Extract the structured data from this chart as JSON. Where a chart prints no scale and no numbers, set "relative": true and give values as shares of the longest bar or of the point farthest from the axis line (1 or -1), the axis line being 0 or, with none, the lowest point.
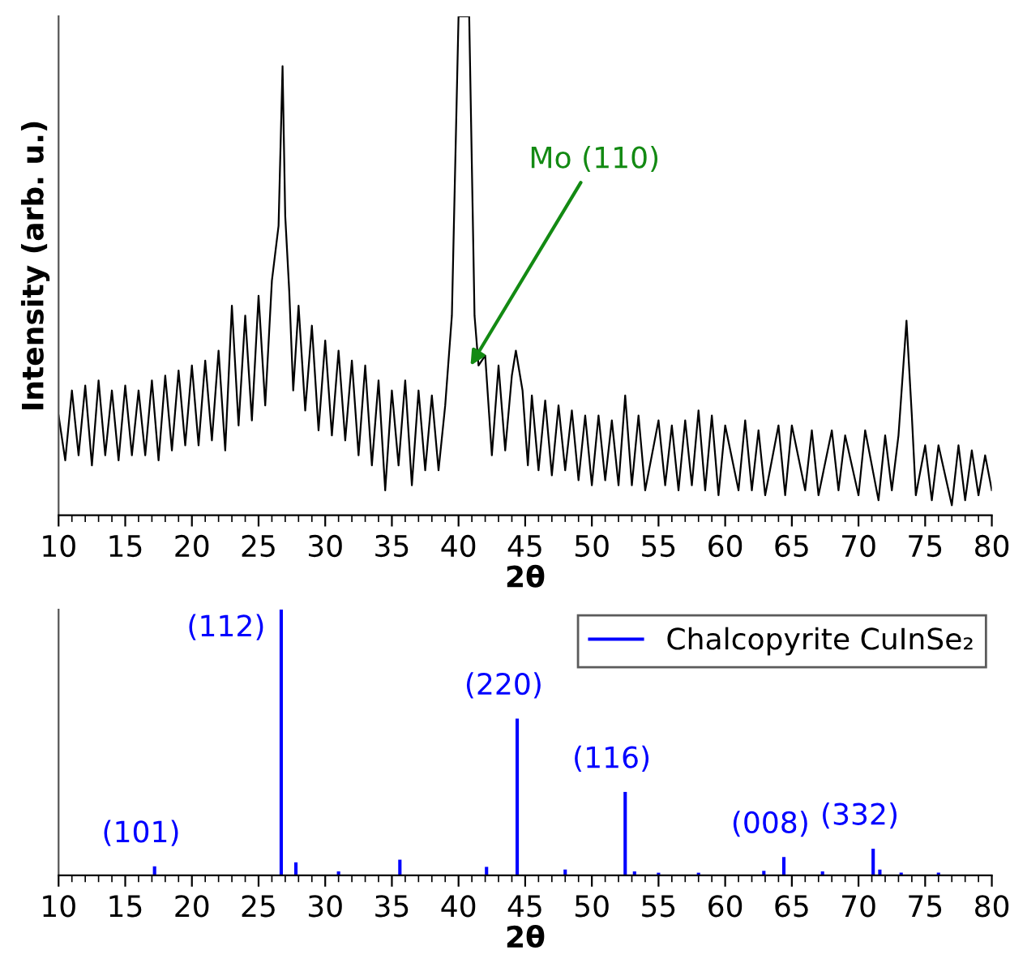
{
  "chart_data": [
    {
      "type": "line",
      "relative": true,
      "xlabel": "2θ",
      "ylabel": "Intensity (arb. u.)",
      "xlim": [
        10,
        80
      ],
      "xticks": [
        10,
        {
          "value": 11,
          "label": null
        },
        {
          "value": 12,
          "label": null
        },
        {
          "value": 13,
          "label": null
        },
        {
          "value": 14,
          "label": null
        },
        15,
        {
          "value": 16,
          "label": null
        },
        {
          "value": 17,
          "label": null
        },
        {
          "value": 18,
          "label": null
        },
        {
          "value": 19,
          "label": null
        },
        20,
        {
          "value": 21,
          "label": null
        },
        {
          "value": 22,
          "label": null
        },
        {
          "value": 23,
          "label": null
        },
        {
          "value": 24,
          "label": null
        },
        25,
        {
          "value": 26,
          "label": null
        },
        {
          "value": 27,
          "label": null
        },
        {
          "value": 28,
          "label": null
        },
        {
          "value": 29,
          "label": null
        },
        30,
        {
          "value": 31,
          "label": null
        },
        {
          "value": 32,
          "label": null
        },
        {
          "value": 33,
          "label": null
        },
        {
          "value": 34,
          "label": null
        },
        35,
        {
          "value": 36,
          "label": null
        },
        {
          "value": 37,
          "label": null
        },
        {
          "value": 38,
          "label": null
        },
        {
          "value": 39,
          "label": null
        },
        40,
        {
          "value": 41,
          "label": null
        },
        {
          "value": 42,
          "label": null
        },
        {
          "value": 43,
          "label": null
        },
        {
          "value": 44,
          "label": null
        },
        45,
        {
          "value": 46,
          "label": null
        },
        {
          "value": 47,
          "label": null
        },
        {
          "value": 48,
          "label": null
        },
        {
          "value": 49,
          "label": null
        },
        50,
        {
          "value": 51,
          "label": null
        },
        {
          "value": 52,
          "label": null
        },
        {
          "value": 53,
          "label": null
        },
        {
          "value": 54,
          "label": null
        },
        55,
        {
          "value": 56,
          "label": null
        },
        {
          "value": 57,
          "label": null
        },
        {
          "value": 58,
          "label": null
        },
        {
          "value": 59,
          "label": null
        },
        60,
        {
          "value": 61,
          "label": null
        },
        {
          "value": 62,
          "label": null
        },
        {
          "value": 63,
          "label": null
        },
        {
          "value": 64,
          "label": null
        },
        65,
        {
          "value": 66,
          "label": null
        },
        {
          "value": 67,
          "label": null
        },
        {
          "value": 68,
          "label": null
        },
        {
          "value": 69,
          "label": null
        },
        70,
        {
          "value": 71,
          "label": null
        },
        {
          "value": 72,
          "label": null
        },
        {
          "value": 73,
          "label": null
        },
        {
          "value": 74,
          "label": null
        },
        75,
        {
          "value": 76,
          "label": null
        },
        {
          "value": 77,
          "label": null
        },
        {
          "value": 78,
          "label": null
        },
        {
          "value": 79,
          "label": null
        },
        80
      ],
      "grid": false,
      "legend": false,
      "annotations": [
        {
          "text": "Mo (110)",
          "x": 40.9,
          "y": 0.3
        }
      ],
      "series": [
        {
          "color": "#000000",
          "x": [
            10.0,
            10.5,
            11.0,
            11.5,
            12.0,
            12.5,
            13.0,
            13.5,
            14.0,
            14.5,
            15.0,
            15.5,
            16.0,
            16.5,
            17.0,
            17.5,
            18.0,
            18.5,
            19.0,
            19.5,
            20.0,
            20.5,
            21.0,
            21.5,
            22.0,
            22.5,
            23.0,
            23.5,
            24.0,
            24.5,
            25.0,
            25.5,
            26.0,
            26.5,
            26.8,
            27.0,
            27.3,
            27.6,
            28.0,
            28.5,
            29.0,
            29.5,
            30.0,
            30.5,
            31.0,
            31.5,
            32.0,
            32.5,
            33.0,
            33.5,
            34.0,
            34.5,
            35.0,
            35.5,
            36.0,
            36.5,
            37.0,
            37.5,
            38.0,
            38.5,
            39.0,
            39.5,
            40.0,
            40.8,
            41.2,
            41.5,
            42.0,
            42.5,
            43.0,
            43.5,
            44.0,
            44.3,
            44.8,
            45.2,
            45.5,
            46.0,
            46.5,
            47.0,
            47.5,
            48.0,
            48.5,
            49.0,
            49.5,
            50.0,
            50.5,
            51.0,
            51.5,
            52.0,
            52.5,
            53.0,
            53.5,
            54.0,
            55.0,
            55.5,
            56.0,
            56.5,
            57.0,
            57.5,
            58.0,
            58.5,
            59.0,
            59.5,
            60.0,
            61.0,
            61.5,
            62.0,
            62.5,
            63.0,
            64.0,
            64.5,
            65.0,
            66.0,
            66.5,
            67.0,
            68.0,
            68.5,
            69.0,
            70.0,
            70.5,
            71.5,
            72.0,
            72.5,
            73.0,
            73.6,
            74.0,
            74.3,
            75.0,
            75.5,
            76.0,
            77.0,
            77.5,
            78.0,
            78.5,
            79.0,
            79.5,
            80.0
          ],
          "values": [
            0.2,
            0.11,
            0.25,
            0.12,
            0.26,
            0.1,
            0.27,
            0.12,
            0.25,
            0.11,
            0.26,
            0.12,
            0.25,
            0.12,
            0.27,
            0.11,
            0.28,
            0.13,
            0.29,
            0.14,
            0.3,
            0.14,
            0.31,
            0.15,
            0.33,
            0.13,
            0.42,
            0.18,
            0.4,
            0.19,
            0.44,
            0.22,
            0.47,
            0.58,
            0.9,
            0.6,
            0.45,
            0.25,
            0.42,
            0.21,
            0.38,
            0.17,
            0.35,
            0.16,
            0.33,
            0.15,
            0.31,
            0.12,
            0.3,
            0.1,
            0.27,
            0.05,
            0.25,
            0.1,
            0.27,
            0.06,
            0.25,
            0.09,
            0.24,
            0.09,
            0.22,
            0.4,
            1.0,
            1.0,
            0.4,
            0.3,
            0.32,
            0.12,
            0.3,
            0.13,
            0.28,
            0.33,
            0.25,
            0.1,
            0.24,
            0.09,
            0.23,
            0.08,
            0.22,
            0.09,
            0.21,
            0.07,
            0.2,
            0.06,
            0.2,
            0.07,
            0.19,
            0.06,
            0.24,
            0.06,
            0.2,
            0.05,
            0.19,
            0.06,
            0.18,
            0.05,
            0.19,
            0.06,
            0.21,
            0.05,
            0.2,
            0.04,
            0.18,
            0.05,
            0.19,
            0.05,
            0.17,
            0.04,
            0.18,
            0.04,
            0.18,
            0.05,
            0.17,
            0.04,
            0.17,
            0.05,
            0.16,
            0.04,
            0.17,
            0.03,
            0.16,
            0.05,
            0.16,
            0.39,
            0.2,
            0.04,
            0.14,
            0.03,
            0.14,
            0.02,
            0.14,
            0.03,
            0.13,
            0.04,
            0.12,
            0.05
          ]
        }
      ]
    },
    {
      "type": "bar",
      "relative": true,
      "xlabel": "2θ",
      "xlim": [
        10,
        80
      ],
      "grid": false,
      "legend": "top right",
      "xticks": [
        10,
        {
          "value": 11,
          "label": null
        },
        {
          "value": 12,
          "label": null
        },
        {
          "value": 13,
          "label": null
        },
        {
          "value": 14,
          "label": null
        },
        15,
        {
          "value": 16,
          "label": null
        },
        {
          "value": 17,
          "label": null
        },
        {
          "value": 18,
          "label": null
        },
        {
          "value": 19,
          "label": null
        },
        20,
        {
          "value": 21,
          "label": null
        },
        {
          "value": 22,
          "label": null
        },
        {
          "value": 23,
          "label": null
        },
        {
          "value": 24,
          "label": null
        },
        25,
        {
          "value": 26,
          "label": null
        },
        {
          "value": 27,
          "label": null
        },
        {
          "value": 28,
          "label": null
        },
        {
          "value": 29,
          "label": null
        },
        30,
        {
          "value": 31,
          "label": null
        },
        {
          "value": 32,
          "label": null
        },
        {
          "value": 33,
          "label": null
        },
        {
          "value": 34,
          "label": null
        },
        35,
        {
          "value": 36,
          "label": null
        },
        {
          "value": 37,
          "label": null
        },
        {
          "value": 38,
          "label": null
        },
        {
          "value": 39,
          "label": null
        },
        40,
        {
          "value": 41,
          "label": null
        },
        {
          "value": 42,
          "label": null
        },
        {
          "value": 43,
          "label": null
        },
        {
          "value": 44,
          "label": null
        },
        45,
        {
          "value": 46,
          "label": null
        },
        {
          "value": 47,
          "label": null
        },
        {
          "value": 48,
          "label": null
        },
        {
          "value": 49,
          "label": null
        },
        50,
        {
          "value": 51,
          "label": null
        },
        {
          "value": 52,
          "label": null
        },
        {
          "value": 53,
          "label": null
        },
        {
          "value": 54,
          "label": null
        },
        55,
        {
          "value": 56,
          "label": null
        },
        {
          "value": 57,
          "label": null
        },
        {
          "value": 58,
          "label": null
        },
        {
          "value": 59,
          "label": null
        },
        60,
        {
          "value": 61,
          "label": null
        },
        {
          "value": 62,
          "label": null
        },
        {
          "value": 63,
          "label": null
        },
        {
          "value": 64,
          "label": null
        },
        65,
        {
          "value": 66,
          "label": null
        },
        {
          "value": 67,
          "label": null
        },
        {
          "value": 68,
          "label": null
        },
        {
          "value": 69,
          "label": null
        },
        70,
        {
          "value": 71,
          "label": null
        },
        {
          "value": 72,
          "label": null
        },
        {
          "value": 73,
          "label": null
        },
        {
          "value": 74,
          "label": null
        },
        75,
        {
          "value": 76,
          "label": null
        },
        {
          "value": 77,
          "label": null
        },
        {
          "value": 78,
          "label": null
        },
        {
          "value": 79,
          "label": null
        },
        80
      ],
      "annotations": [
        {
          "text": "(101)",
          "x": 17.2,
          "y": 0.034
        },
        {
          "text": "(112)",
          "x": 26.7,
          "y": 1.0
        },
        {
          "text": "(220)",
          "x": 44.4,
          "y": 0.59
        },
        {
          "text": "(116)",
          "x": 52.5,
          "y": 0.314
        },
        {
          "text": "(008)",
          "x": 64.4,
          "y": 0.069
        },
        {
          "text": "(332)",
          "x": 71.1,
          "y": 0.1
        }
      ],
      "series": [
        {
          "name": "Chalcopyrite CuInSe₂",
          "color": "#0000ff",
          "x": [
            17.2,
            26.7,
            27.8,
            31.0,
            35.6,
            42.1,
            44.4,
            48.0,
            52.5,
            53.2,
            55.0,
            58.0,
            62.9,
            64.4,
            67.3,
            71.1,
            71.6,
            73.2,
            76.0
          ],
          "values": [
            0.034,
            1.0,
            0.049,
            0.015,
            0.059,
            0.032,
            0.59,
            0.022,
            0.314,
            0.015,
            0.01,
            0.01,
            0.017,
            0.069,
            0.015,
            0.1,
            0.022,
            0.01,
            0.01
          ]
        }
      ]
    }
  ]
}
